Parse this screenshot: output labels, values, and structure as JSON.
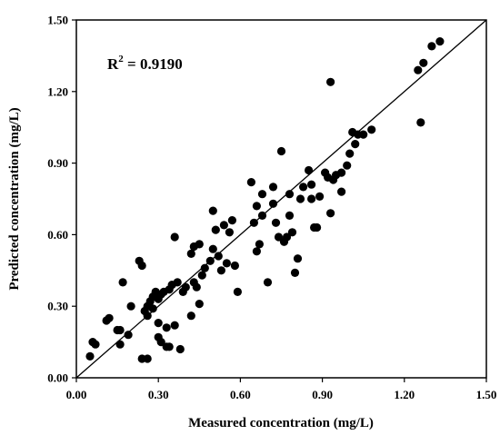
{
  "chart_data": {
    "type": "scatter",
    "title": "",
    "xlabel": "Measured concentration (mg/L)",
    "ylabel": "Predicted concentration (mg/L)",
    "xlim": [
      0,
      1.5
    ],
    "ylim": [
      0,
      1.5
    ],
    "xticks": [
      "0.00",
      "0.30",
      "0.60",
      "0.90",
      "1.20",
      "1.50"
    ],
    "yticks": [
      "0.00",
      "0.30",
      "0.60",
      "0.90",
      "1.20",
      "1.50"
    ],
    "xtick_values": [
      0,
      0.3,
      0.6,
      0.9,
      1.2,
      1.5
    ],
    "ytick_values": [
      0,
      0.3,
      0.6,
      0.9,
      1.2,
      1.5
    ],
    "annotation": {
      "base": "R",
      "superscript": "2",
      "text": " = 0.9190"
    },
    "reference_line": {
      "type": "y=x",
      "from": [
        0,
        0
      ],
      "to": [
        1.5,
        1.5
      ]
    },
    "grid": false,
    "legend": "none",
    "marker_color": "#000000",
    "series": [
      {
        "points": [
          [
            0.05,
            0.09
          ],
          [
            0.06,
            0.15
          ],
          [
            0.07,
            0.14
          ],
          [
            0.11,
            0.24
          ],
          [
            0.12,
            0.25
          ],
          [
            0.16,
            0.14
          ],
          [
            0.15,
            0.2
          ],
          [
            0.16,
            0.2
          ],
          [
            0.17,
            0.4
          ],
          [
            0.19,
            0.18
          ],
          [
            0.2,
            0.3
          ],
          [
            0.23,
            0.49
          ],
          [
            0.24,
            0.47
          ],
          [
            0.24,
            0.08
          ],
          [
            0.26,
            0.08
          ],
          [
            0.25,
            0.28
          ],
          [
            0.26,
            0.3
          ],
          [
            0.26,
            0.26
          ],
          [
            0.27,
            0.32
          ],
          [
            0.28,
            0.29
          ],
          [
            0.28,
            0.34
          ],
          [
            0.29,
            0.36
          ],
          [
            0.3,
            0.33
          ],
          [
            0.3,
            0.17
          ],
          [
            0.3,
            0.23
          ],
          [
            0.31,
            0.35
          ],
          [
            0.31,
            0.15
          ],
          [
            0.32,
            0.36
          ],
          [
            0.33,
            0.21
          ],
          [
            0.33,
            0.13
          ],
          [
            0.34,
            0.37
          ],
          [
            0.34,
            0.13
          ],
          [
            0.35,
            0.39
          ],
          [
            0.36,
            0.22
          ],
          [
            0.36,
            0.59
          ],
          [
            0.37,
            0.4
          ],
          [
            0.38,
            0.12
          ],
          [
            0.39,
            0.36
          ],
          [
            0.4,
            0.38
          ],
          [
            0.42,
            0.52
          ],
          [
            0.42,
            0.26
          ],
          [
            0.43,
            0.55
          ],
          [
            0.43,
            0.4
          ],
          [
            0.44,
            0.38
          ],
          [
            0.45,
            0.56
          ],
          [
            0.45,
            0.31
          ],
          [
            0.46,
            0.43
          ],
          [
            0.47,
            0.46
          ],
          [
            0.49,
            0.49
          ],
          [
            0.5,
            0.54
          ],
          [
            0.5,
            0.7
          ],
          [
            0.51,
            0.62
          ],
          [
            0.52,
            0.51
          ],
          [
            0.53,
            0.45
          ],
          [
            0.54,
            0.64
          ],
          [
            0.55,
            0.48
          ],
          [
            0.56,
            0.61
          ],
          [
            0.57,
            0.66
          ],
          [
            0.58,
            0.47
          ],
          [
            0.59,
            0.36
          ],
          [
            0.64,
            0.82
          ],
          [
            0.65,
            0.65
          ],
          [
            0.66,
            0.72
          ],
          [
            0.66,
            0.53
          ],
          [
            0.67,
            0.56
          ],
          [
            0.68,
            0.77
          ],
          [
            0.68,
            0.68
          ],
          [
            0.7,
            0.4
          ],
          [
            0.72,
            0.73
          ],
          [
            0.72,
            0.8
          ],
          [
            0.73,
            0.65
          ],
          [
            0.74,
            0.59
          ],
          [
            0.75,
            0.95
          ],
          [
            0.76,
            0.57
          ],
          [
            0.77,
            0.59
          ],
          [
            0.78,
            0.77
          ],
          [
            0.78,
            0.68
          ],
          [
            0.79,
            0.61
          ],
          [
            0.8,
            0.44
          ],
          [
            0.81,
            0.5
          ],
          [
            0.82,
            0.75
          ],
          [
            0.83,
            0.8
          ],
          [
            0.85,
            0.87
          ],
          [
            0.86,
            0.81
          ],
          [
            0.86,
            0.75
          ],
          [
            0.87,
            0.63
          ],
          [
            0.88,
            0.63
          ],
          [
            0.89,
            0.76
          ],
          [
            0.91,
            0.86
          ],
          [
            0.92,
            0.84
          ],
          [
            0.93,
            0.69
          ],
          [
            0.93,
            1.24
          ],
          [
            0.94,
            0.83
          ],
          [
            0.95,
            0.85
          ],
          [
            0.97,
            0.86
          ],
          [
            0.97,
            0.78
          ],
          [
            0.99,
            0.89
          ],
          [
            1.0,
            0.94
          ],
          [
            1.01,
            1.03
          ],
          [
            1.02,
            0.98
          ],
          [
            1.03,
            1.02
          ],
          [
            1.05,
            1.02
          ],
          [
            1.08,
            1.04
          ],
          [
            1.25,
            1.29
          ],
          [
            1.26,
            1.07
          ],
          [
            1.27,
            1.32
          ],
          [
            1.3,
            1.39
          ],
          [
            1.33,
            1.41
          ]
        ]
      }
    ]
  }
}
